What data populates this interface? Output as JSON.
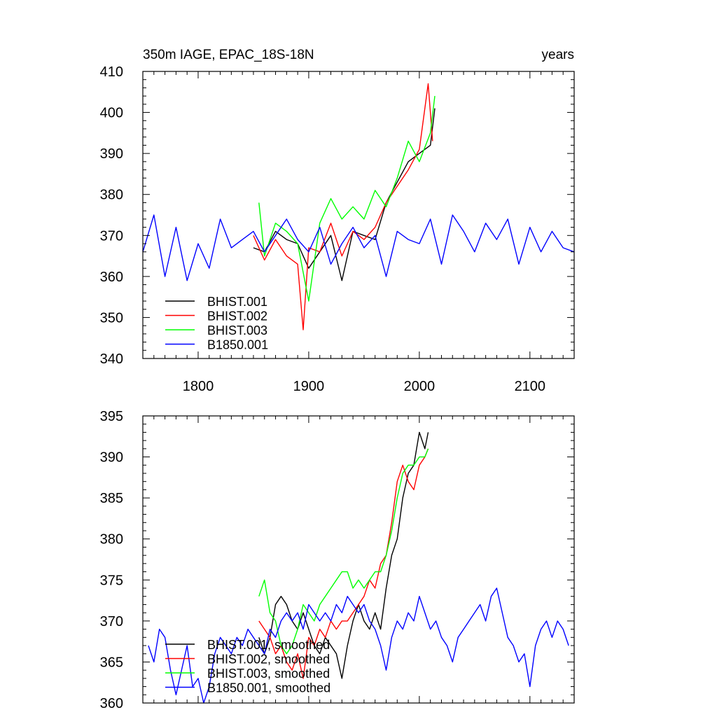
{
  "chart_data": [
    {
      "type": "line",
      "title_left": "350m IAGE, EPAC_18S-18N",
      "title_right": "years",
      "xlim": [
        1750,
        2140
      ],
      "ylim": [
        340,
        410
      ],
      "xticks": [
        1800,
        1900,
        2000,
        2100
      ],
      "yticks": [
        340,
        350,
        360,
        370,
        380,
        390,
        400,
        410
      ],
      "show_xtick_labels": true,
      "grid": false,
      "legend_placement": "bottom-left",
      "series": [
        {
          "name": "BHIST.001",
          "color": "#000000",
          "x": [
            1850,
            1860,
            1870,
            1880,
            1890,
            1900,
            1910,
            1920,
            1930,
            1940,
            1950,
            1960,
            1970,
            1980,
            1990,
            2000,
            2010,
            2014
          ],
          "y": [
            367,
            366,
            371,
            369,
            368,
            362,
            366,
            370,
            359,
            371,
            370,
            369,
            378,
            383,
            388,
            390,
            392,
            401
          ]
        },
        {
          "name": "BHIST.002",
          "color": "#ff0000",
          "x": [
            1850,
            1860,
            1870,
            1880,
            1890,
            1895,
            1900,
            1910,
            1920,
            1930,
            1940,
            1950,
            1960,
            1970,
            1980,
            1990,
            2000,
            2008,
            2012
          ],
          "y": [
            370,
            364,
            369,
            365,
            363,
            347,
            367,
            366,
            373,
            365,
            371,
            369,
            372,
            378,
            382,
            386,
            391,
            407,
            393
          ]
        },
        {
          "name": "BHIST.003",
          "color": "#00ff00",
          "x": [
            1855,
            1860,
            1870,
            1880,
            1890,
            1900,
            1910,
            1920,
            1930,
            1940,
            1950,
            1960,
            1970,
            1980,
            1990,
            2000,
            2010,
            2014
          ],
          "y": [
            378,
            365,
            373,
            371,
            368,
            354,
            373,
            379,
            374,
            377,
            374,
            381,
            377,
            384,
            393,
            388,
            395,
            404
          ]
        },
        {
          "name": "B1850.001",
          "color": "#0000ff",
          "x": [
            1750,
            1760,
            1770,
            1780,
            1790,
            1800,
            1810,
            1820,
            1830,
            1840,
            1850,
            1860,
            1870,
            1880,
            1890,
            1900,
            1910,
            1920,
            1930,
            1940,
            1950,
            1960,
            1970,
            1980,
            1990,
            2000,
            2010,
            2020,
            2030,
            2040,
            2050,
            2060,
            2070,
            2080,
            2090,
            2100,
            2110,
            2120,
            2130,
            2140
          ],
          "y": [
            366,
            375,
            360,
            372,
            359,
            368,
            362,
            374,
            367,
            369,
            371,
            366,
            370,
            374,
            369,
            366,
            372,
            363,
            368,
            372,
            367,
            370,
            360,
            371,
            369,
            368,
            374,
            363,
            375,
            371,
            366,
            373,
            369,
            374,
            363,
            372,
            366,
            371,
            367,
            366
          ]
        }
      ]
    },
    {
      "type": "line",
      "xlim": [
        1750,
        2140
      ],
      "ylim": [
        360,
        395
      ],
      "xticks": [
        1800,
        1900,
        2000,
        2100
      ],
      "yticks": [
        360,
        365,
        370,
        375,
        380,
        385,
        390,
        395
      ],
      "show_xtick_labels": false,
      "grid": false,
      "legend_placement": "bottom-left",
      "series": [
        {
          "name": "BHIST.001, smoothed",
          "color": "#000000",
          "x": [
            1855,
            1860,
            1865,
            1870,
            1875,
            1880,
            1885,
            1890,
            1895,
            1900,
            1905,
            1910,
            1915,
            1920,
            1925,
            1930,
            1935,
            1940,
            1945,
            1950,
            1955,
            1960,
            1965,
            1970,
            1975,
            1980,
            1985,
            1990,
            1995,
            2000,
            2005,
            2008
          ],
          "y": [
            368,
            366,
            368,
            372,
            373,
            372,
            370,
            369,
            371,
            369,
            367,
            366,
            368,
            367,
            366,
            363,
            367,
            370,
            372,
            370,
            369,
            371,
            369,
            374,
            378,
            380,
            385,
            388,
            389,
            393,
            391,
            393
          ]
        },
        {
          "name": "BHIST.002, smoothed",
          "color": "#ff0000",
          "x": [
            1855,
            1860,
            1865,
            1870,
            1875,
            1880,
            1885,
            1890,
            1895,
            1900,
            1905,
            1910,
            1915,
            1920,
            1925,
            1930,
            1935,
            1940,
            1945,
            1950,
            1955,
            1960,
            1965,
            1970,
            1975,
            1980,
            1985,
            1990,
            1995,
            2000,
            2005,
            2008
          ],
          "y": [
            370,
            369,
            368,
            366,
            367,
            365,
            364,
            366,
            363,
            368,
            367,
            369,
            368,
            370,
            369,
            370,
            370,
            371,
            372,
            373,
            375,
            374,
            377,
            378,
            382,
            387,
            389,
            387,
            386,
            389,
            390,
            391
          ]
        },
        {
          "name": "BHIST.003, smoothed",
          "color": "#00ff00",
          "x": [
            1855,
            1860,
            1865,
            1870,
            1875,
            1880,
            1885,
            1890,
            1895,
            1900,
            1905,
            1910,
            1915,
            1920,
            1925,
            1930,
            1935,
            1940,
            1945,
            1950,
            1955,
            1960,
            1965,
            1970,
            1975,
            1980,
            1985,
            1990,
            1995,
            2000,
            2005,
            2008
          ],
          "y": [
            373,
            375,
            371,
            370,
            367,
            366,
            367,
            369,
            372,
            371,
            370,
            372,
            373,
            374,
            375,
            376,
            376,
            374,
            375,
            374,
            375,
            376,
            376,
            378,
            381,
            385,
            388,
            389,
            389,
            390,
            390,
            391
          ]
        },
        {
          "name": "B1850.001, smoothed",
          "color": "#0000ff",
          "x": [
            1755,
            1760,
            1765,
            1770,
            1775,
            1780,
            1785,
            1790,
            1795,
            1800,
            1805,
            1810,
            1815,
            1820,
            1825,
            1830,
            1835,
            1840,
            1845,
            1850,
            1855,
            1860,
            1865,
            1870,
            1875,
            1880,
            1885,
            1890,
            1895,
            1900,
            1905,
            1910,
            1915,
            1920,
            1925,
            1930,
            1935,
            1940,
            1945,
            1950,
            1955,
            1960,
            1965,
            1970,
            1975,
            1980,
            1985,
            1990,
            1995,
            2000,
            2005,
            2010,
            2015,
            2020,
            2025,
            2030,
            2035,
            2040,
            2045,
            2050,
            2055,
            2060,
            2065,
            2070,
            2075,
            2080,
            2085,
            2090,
            2095,
            2100,
            2105,
            2110,
            2115,
            2120,
            2125,
            2130,
            2135
          ],
          "y": [
            367,
            365,
            369,
            368,
            364,
            361,
            364,
            367,
            362,
            363,
            360,
            362,
            366,
            368,
            367,
            366,
            368,
            367,
            369,
            368,
            367,
            366,
            369,
            368,
            370,
            371,
            370,
            371,
            369,
            372,
            371,
            370,
            371,
            370,
            372,
            371,
            373,
            372,
            371,
            372,
            370,
            369,
            367,
            364,
            368,
            370,
            369,
            371,
            370,
            373,
            371,
            369,
            370,
            368,
            367,
            365,
            368,
            369,
            370,
            371,
            372,
            370,
            373,
            374,
            371,
            368,
            367,
            365,
            366,
            362,
            367,
            369,
            370,
            368,
            370,
            369,
            367
          ]
        }
      ]
    }
  ]
}
